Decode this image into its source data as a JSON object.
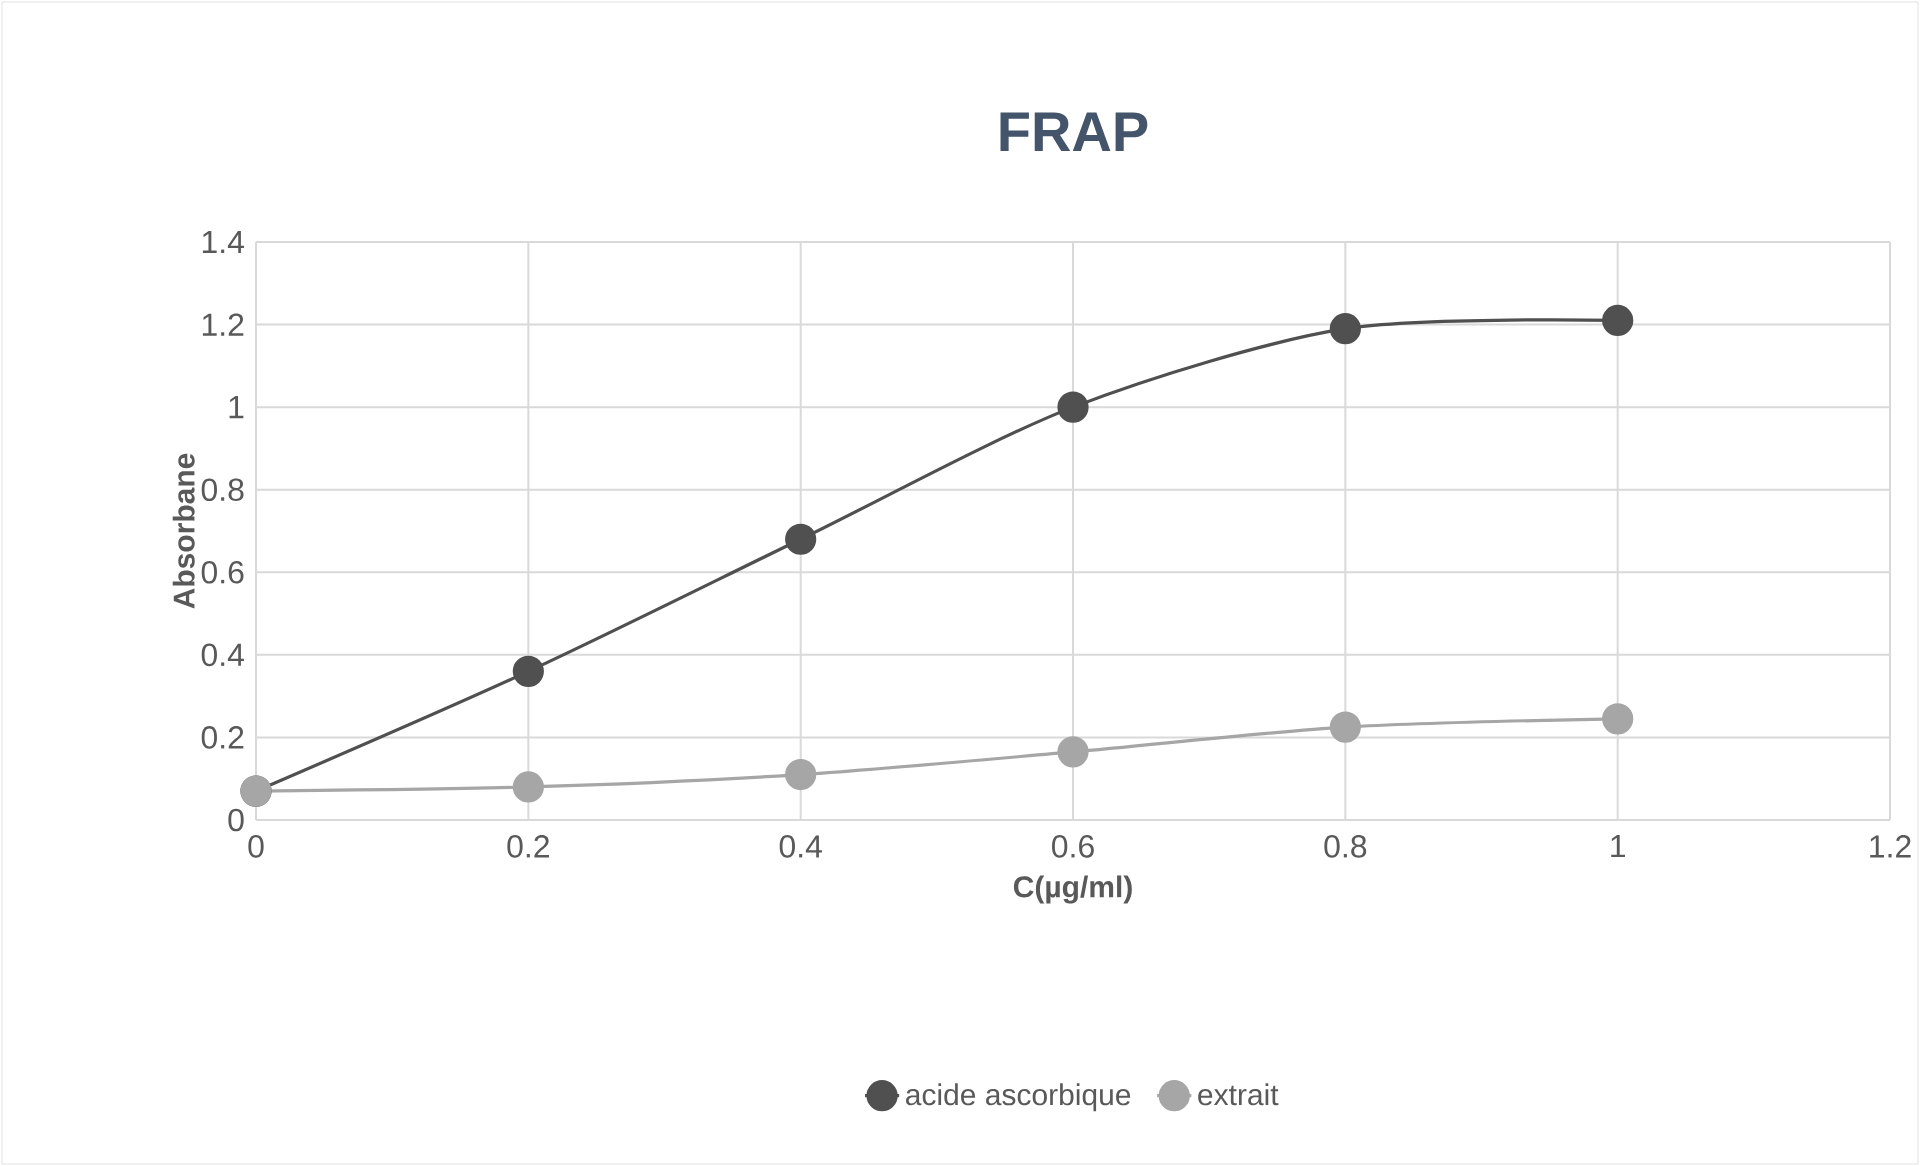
{
  "chart_data": {
    "type": "line",
    "title": "FRAP",
    "xlabel": "C(µg/ml)",
    "ylabel": "Absorbane",
    "x": [
      0,
      0.2,
      0.4,
      0.6,
      0.8,
      1
    ],
    "series": [
      {
        "name": "acide ascorbique",
        "color": "#505050",
        "values": [
          0.07,
          0.36,
          0.68,
          1.0,
          1.19,
          1.21
        ]
      },
      {
        "name": "extrait",
        "color": "#a6a6a6",
        "values": [
          0.07,
          0.08,
          0.11,
          0.165,
          0.225,
          0.245
        ]
      }
    ],
    "xlim": [
      0,
      1.2
    ],
    "xticks": [
      0,
      0.2,
      0.4,
      0.6,
      0.8,
      1,
      1.2
    ],
    "ylim": [
      0,
      1.4
    ],
    "yticks": [
      0,
      0.2,
      0.4,
      0.6,
      0.8,
      1,
      1.2,
      1.4
    ],
    "grid": true,
    "legend": "bottom",
    "marker": "circle",
    "line_style": "solid"
  }
}
